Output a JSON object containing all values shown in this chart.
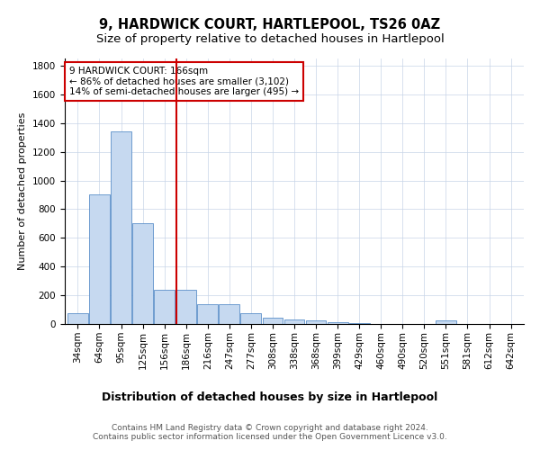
{
  "title": "9, HARDWICK COURT, HARTLEPOOL, TS26 0AZ",
  "subtitle": "Size of property relative to detached houses in Hartlepool",
  "xlabel": "Distribution of detached houses by size in Hartlepool",
  "ylabel": "Number of detached properties",
  "categories": [
    "34sqm",
    "64sqm",
    "95sqm",
    "125sqm",
    "156sqm",
    "186sqm",
    "216sqm",
    "247sqm",
    "277sqm",
    "308sqm",
    "338sqm",
    "368sqm",
    "399sqm",
    "429sqm",
    "460sqm",
    "490sqm",
    "520sqm",
    "551sqm",
    "581sqm",
    "612sqm",
    "642sqm"
  ],
  "values": [
    75,
    900,
    1340,
    700,
    240,
    240,
    140,
    140,
    75,
    45,
    30,
    25,
    15,
    5,
    0,
    0,
    0,
    25,
    0,
    0,
    0
  ],
  "bar_color": "#c6d9f0",
  "bar_edge_color": "#5b8fc9",
  "vline_x": 4.55,
  "vline_color": "#cc0000",
  "annotation_text": "9 HARDWICK COURT: 166sqm\n← 86% of detached houses are smaller (3,102)\n14% of semi-detached houses are larger (495) →",
  "annotation_box_color": "#ffffff",
  "annotation_box_edge": "#cc0000",
  "ylim": [
    0,
    1850
  ],
  "yticks": [
    0,
    200,
    400,
    600,
    800,
    1000,
    1200,
    1400,
    1600,
    1800
  ],
  "title_fontsize": 10.5,
  "subtitle_fontsize": 9.5,
  "xlabel_fontsize": 9,
  "ylabel_fontsize": 8,
  "tick_fontsize": 7.5,
  "annotation_fontsize": 7.5,
  "footer_text": "Contains HM Land Registry data © Crown copyright and database right 2024.\nContains public sector information licensed under the Open Government Licence v3.0.",
  "footer_fontsize": 6.5,
  "background_color": "#ffffff",
  "grid_color": "#c8d4e8"
}
